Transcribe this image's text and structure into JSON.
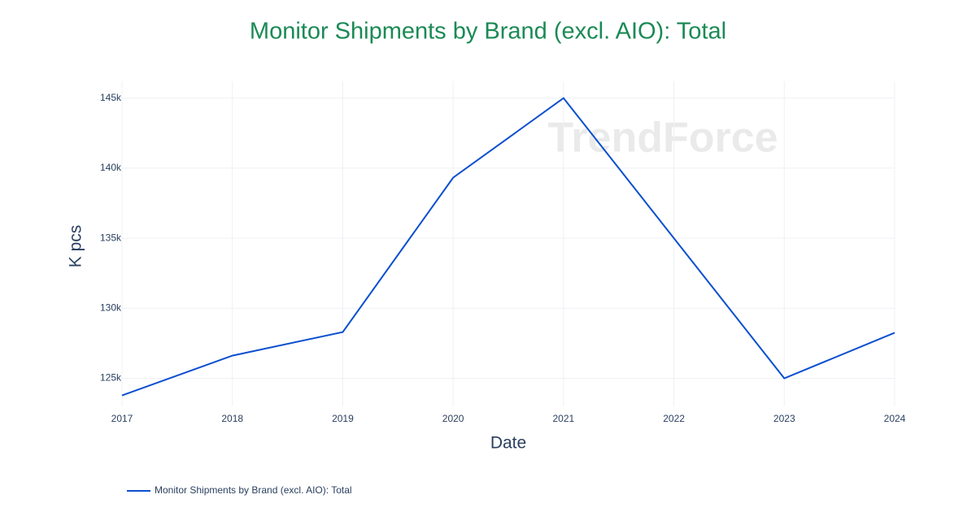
{
  "chart_data": {
    "type": "line",
    "title": "Monitor Shipments by Brand (excl. AIO): Total",
    "x_label": "Date",
    "y_label": "K pcs",
    "watermark": "TrendForce",
    "x": [
      2017,
      2018,
      2019,
      2020,
      2021,
      2022,
      2023,
      2024
    ],
    "series": [
      {
        "name": "Monitor Shipments by Brand (excl. AIO): Total",
        "color": "#0b4fcf",
        "values": [
          123780,
          126620,
          128300,
          139320,
          145000,
          135000,
          125000,
          128250
        ]
      }
    ],
    "xlim": [
      2017,
      2024
    ],
    "xticks": [
      2017,
      2018,
      2019,
      2020,
      2021,
      2022,
      2023,
      2024
    ],
    "ylim": [
      123000,
      146200
    ],
    "yticks": [
      {
        "value": 125000,
        "label": "125k"
      },
      {
        "value": 130000,
        "label": "130k"
      },
      {
        "value": 135000,
        "label": "135k"
      },
      {
        "value": 140000,
        "label": "140k"
      },
      {
        "value": 145000,
        "label": "145k"
      }
    ],
    "grid": true,
    "legend": "bottom-left"
  }
}
